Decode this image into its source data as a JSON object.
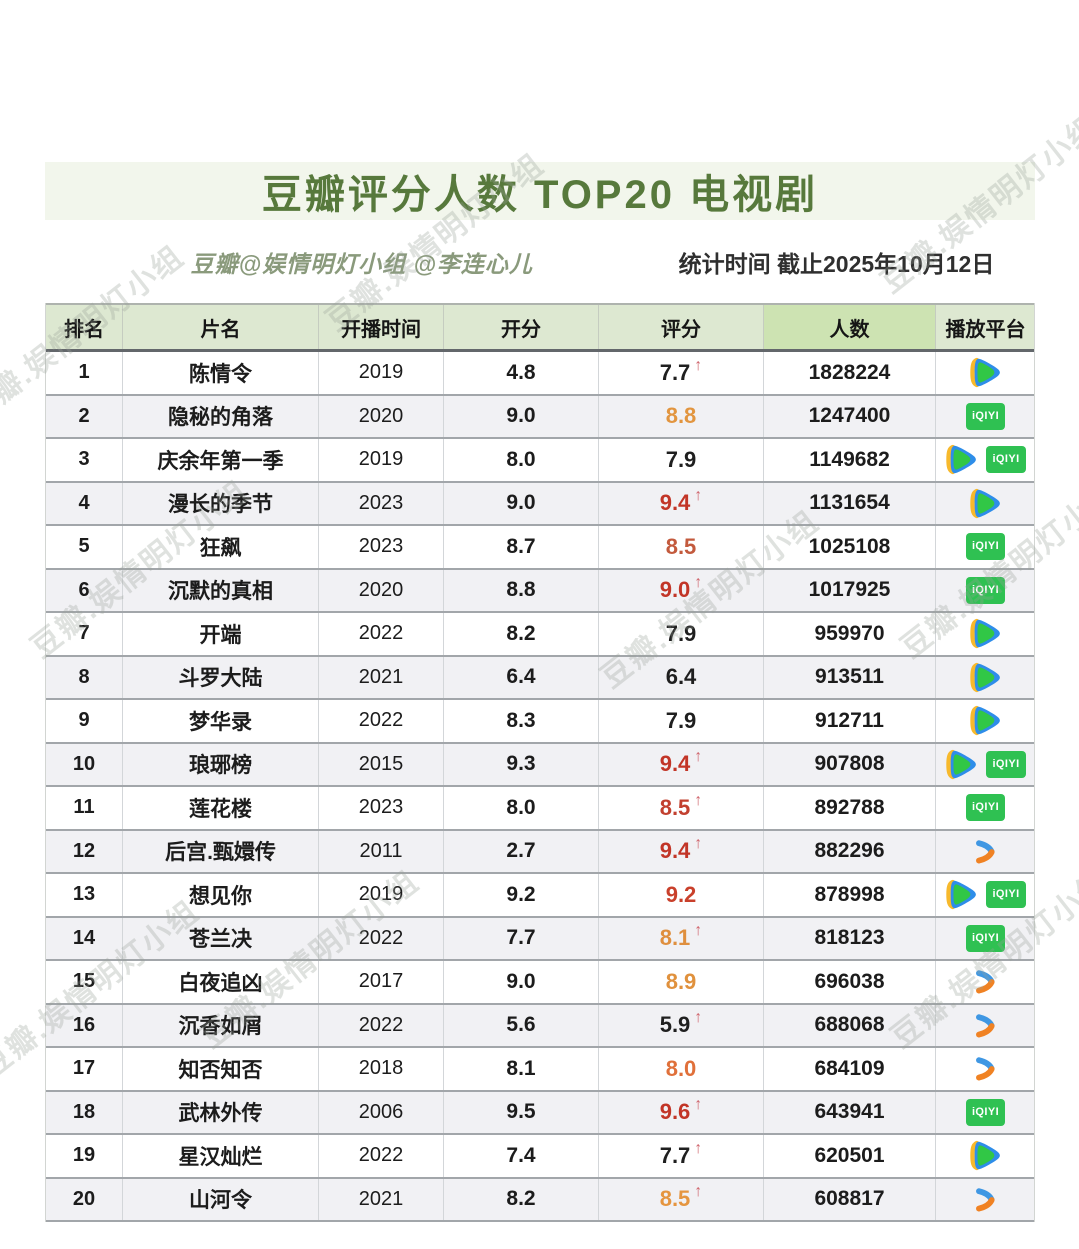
{
  "header": {
    "title": "豆瓣评分人数 TOP20 电视剧",
    "credit": "豆瓣@娱情明灯小组 @李连心儿",
    "stat_time": "统计时间  截止2025年10月12日"
  },
  "watermark": "豆瓣.娱情明灯小组",
  "platform_labels": {
    "tencent": "腾讯视频",
    "iqiyi": "爱奇艺",
    "youku": "优酷",
    "iqiyi_badge_text": "iQIYI"
  },
  "colors": {
    "title_green": "#57793c",
    "title_band_bg": "#f2f6ec",
    "header_bg": "#dde8d1",
    "header_count_bg": "#cde3b2",
    "row_stripe": "#f1f1f4",
    "rating_red": "#c23527",
    "rating_orange": "#e2953f",
    "rating_black": "#1f1f1f",
    "arrow_pink": "#d0666e",
    "iqiyi_green": "#2fc152"
  },
  "chart_data": {
    "type": "table",
    "title": "豆瓣评分人数 TOP20 电视剧",
    "columns": [
      "排名",
      "片名",
      "开播时间",
      "开分",
      "评分",
      "人数",
      "播放平台"
    ],
    "rows": [
      {
        "rank": "1",
        "name": "陈情令",
        "year": "2019",
        "open_score": "4.8",
        "rating": "7.7",
        "rating_color": "#1f1f1f",
        "rating_up": true,
        "votes": "1828224",
        "platforms": [
          "tencent"
        ]
      },
      {
        "rank": "2",
        "name": "隐秘的角落",
        "year": "2020",
        "open_score": "9.0",
        "rating": "8.8",
        "rating_color": "#e2953f",
        "rating_up": false,
        "votes": "1247400",
        "platforms": [
          "iqiyi"
        ]
      },
      {
        "rank": "3",
        "name": "庆余年第一季",
        "year": "2019",
        "open_score": "8.0",
        "rating": "7.9",
        "rating_color": "#1f1f1f",
        "rating_up": false,
        "votes": "1149682",
        "platforms": [
          "tencent",
          "iqiyi"
        ]
      },
      {
        "rank": "4",
        "name": "漫长的季节",
        "year": "2023",
        "open_score": "9.0",
        "rating": "9.4",
        "rating_color": "#c23527",
        "rating_up": true,
        "votes": "1131654",
        "platforms": [
          "tencent"
        ]
      },
      {
        "rank": "5",
        "name": "狂飙",
        "year": "2023",
        "open_score": "8.7",
        "rating": "8.5",
        "rating_color": "#c35a3d",
        "rating_up": false,
        "votes": "1025108",
        "platforms": [
          "iqiyi"
        ]
      },
      {
        "rank": "6",
        "name": "沉默的真相",
        "year": "2020",
        "open_score": "8.8",
        "rating": "9.0",
        "rating_color": "#c23527",
        "rating_up": true,
        "votes": "1017925",
        "platforms": [
          "iqiyi"
        ]
      },
      {
        "rank": "7",
        "name": "开端",
        "year": "2022",
        "open_score": "8.2",
        "rating": "7.9",
        "rating_color": "#1f1f1f",
        "rating_up": false,
        "votes": "959970",
        "platforms": [
          "tencent"
        ]
      },
      {
        "rank": "8",
        "name": "斗罗大陆",
        "year": "2021",
        "open_score": "6.4",
        "rating": "6.4",
        "rating_color": "#1f1f1f",
        "rating_up": false,
        "votes": "913511",
        "platforms": [
          "tencent"
        ]
      },
      {
        "rank": "9",
        "name": "梦华录",
        "year": "2022",
        "open_score": "8.3",
        "rating": "7.9",
        "rating_color": "#1f1f1f",
        "rating_up": false,
        "votes": "912711",
        "platforms": [
          "tencent"
        ]
      },
      {
        "rank": "10",
        "name": "琅琊榜",
        "year": "2015",
        "open_score": "9.3",
        "rating": "9.4",
        "rating_color": "#c23527",
        "rating_up": true,
        "votes": "907808",
        "platforms": [
          "tencent",
          "iqiyi"
        ]
      },
      {
        "rank": "11",
        "name": "莲花楼",
        "year": "2023",
        "open_score": "8.0",
        "rating": "8.5",
        "rating_color": "#c2402f",
        "rating_up": true,
        "votes": "892788",
        "platforms": [
          "iqiyi"
        ]
      },
      {
        "rank": "12",
        "name": "后宫.甄嬛传",
        "year": "2011",
        "open_score": "2.7",
        "rating": "9.4",
        "rating_color": "#c23527",
        "rating_up": true,
        "votes": "882296",
        "platforms": [
          "youku"
        ]
      },
      {
        "rank": "13",
        "name": "想见你",
        "year": "2019",
        "open_score": "9.2",
        "rating": "9.2",
        "rating_color": "#c9402b",
        "rating_up": false,
        "votes": "878998",
        "platforms": [
          "tencent",
          "iqiyi"
        ]
      },
      {
        "rank": "14",
        "name": "苍兰决",
        "year": "2022",
        "open_score": "7.7",
        "rating": "8.1",
        "rating_color": "#df8f3e",
        "rating_up": true,
        "votes": "818123",
        "platforms": [
          "iqiyi"
        ]
      },
      {
        "rank": "15",
        "name": "白夜追凶",
        "year": "2017",
        "open_score": "9.0",
        "rating": "8.9",
        "rating_color": "#e0913d",
        "rating_up": false,
        "votes": "696038",
        "platforms": [
          "youku"
        ]
      },
      {
        "rank": "16",
        "name": "沉香如屑",
        "year": "2022",
        "open_score": "5.6",
        "rating": "5.9",
        "rating_color": "#1f1f1f",
        "rating_up": true,
        "votes": "688068",
        "platforms": [
          "youku"
        ]
      },
      {
        "rank": "17",
        "name": "知否知否",
        "year": "2018",
        "open_score": "8.1",
        "rating": "8.0",
        "rating_color": "#e0703a",
        "rating_up": false,
        "votes": "684109",
        "platforms": [
          "youku"
        ]
      },
      {
        "rank": "18",
        "name": "武林外传",
        "year": "2006",
        "open_score": "9.5",
        "rating": "9.6",
        "rating_color": "#c23527",
        "rating_up": true,
        "votes": "643941",
        "platforms": [
          "iqiyi"
        ]
      },
      {
        "rank": "19",
        "name": "星汉灿烂",
        "year": "2022",
        "open_score": "7.4",
        "rating": "7.7",
        "rating_color": "#1f1f1f",
        "rating_up": true,
        "votes": "620501",
        "platforms": [
          "tencent"
        ]
      },
      {
        "rank": "20",
        "name": "山河令",
        "year": "2021",
        "open_score": "8.2",
        "rating": "8.5",
        "rating_color": "#e5953f",
        "rating_up": true,
        "votes": "608817",
        "platforms": [
          "youku"
        ]
      }
    ]
  }
}
